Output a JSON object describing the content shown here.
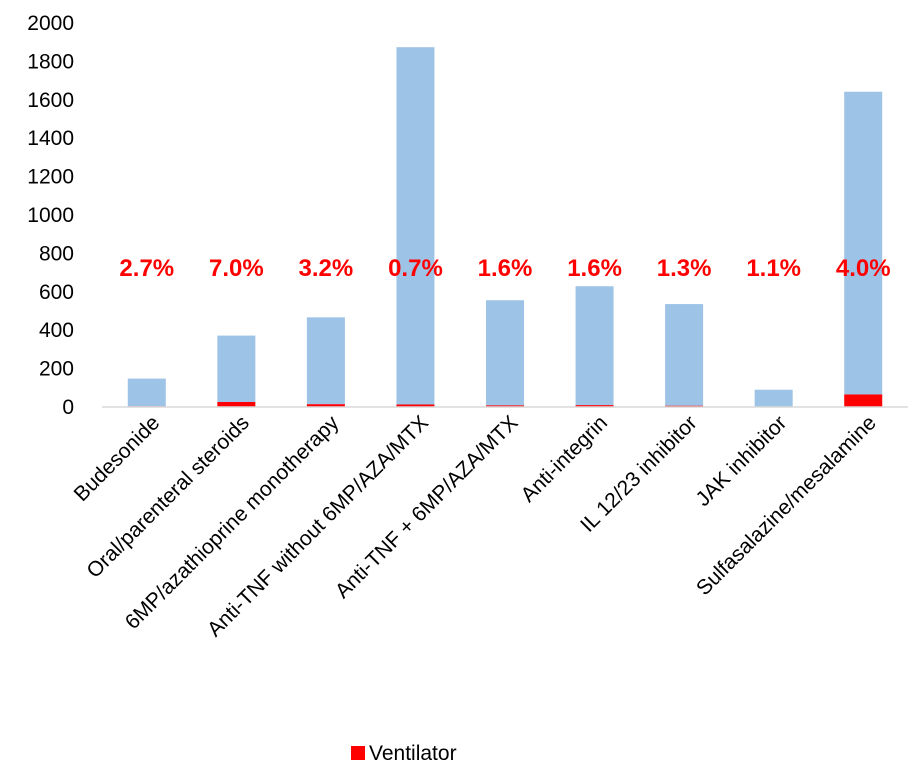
{
  "chart_data": {
    "type": "bar",
    "stacked": true,
    "categories": [
      "Budesonide",
      "Oral/parenteral steroids",
      "6MP/azathioprine monotherapy",
      "Anti-TNF without 6MP/AZA/MTX",
      "Anti-TNF + 6MP/AZA/MTX",
      "Anti-integrin",
      "IL 12/23 inhibitor",
      "JAK inhibitor",
      "Sulfasalazine/mesalamine"
    ],
    "series": [
      {
        "name": "Ventilator",
        "color": "#ff0000",
        "values": [
          4,
          26,
          15,
          13,
          9,
          10,
          7,
          1,
          66
        ]
      },
      {
        "name": "",
        "color": "#9dc3e6",
        "values": [
          144,
          346,
          452,
          1861,
          547,
          619,
          529,
          89,
          1576
        ]
      }
    ],
    "data_labels": [
      "2.7%",
      "7.0%",
      "3.2%",
      "0.7%",
      "1.6%",
      "1.6%",
      "1.3%",
      "1.1%",
      "4.0%"
    ],
    "yticks": [
      "0",
      "200",
      "400",
      "600",
      "800",
      "1000",
      "1200",
      "1400",
      "1600",
      "1800",
      "2000"
    ],
    "ylim": [
      0,
      2000
    ],
    "grid": false,
    "legend_position": "bottom",
    "legend": [
      "Ventilator"
    ]
  }
}
